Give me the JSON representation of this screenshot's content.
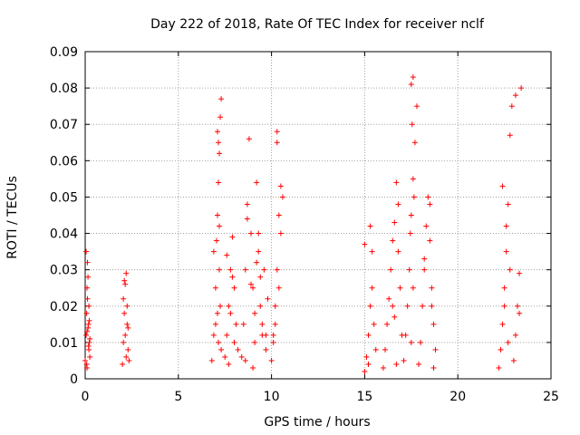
{
  "chart_data": {
    "type": "scatter",
    "title": "Day 222 of 2018, Rate Of TEC Index for receiver nclf",
    "xlabel": "GPS time / hours",
    "ylabel": "ROTI / TECUs",
    "xlim": [
      0,
      25
    ],
    "ylim": [
      0,
      0.09
    ],
    "xticks": [
      0,
      5,
      10,
      15,
      20,
      25
    ],
    "xtick_labels": [
      "0",
      "5",
      "10",
      "15",
      "20",
      "25"
    ],
    "yticks": [
      0,
      0.01,
      0.02,
      0.03,
      0.04,
      0.05,
      0.06,
      0.07,
      0.08,
      0.09
    ],
    "ytick_labels": [
      "0",
      "0.01",
      "0.02",
      "0.03",
      "0.04",
      "0.05",
      "0.06",
      "0.07",
      "0.08",
      "0.09"
    ],
    "grid": true,
    "marker": "+",
    "color": "#ff0000",
    "series": [
      {
        "name": "ROTI",
        "x": [
          0.0,
          0.05,
          0.08,
          0.1,
          0.12,
          0.15,
          0.18,
          0.2,
          0.22,
          0.25,
          0.05,
          0.1,
          0.15,
          0.2,
          0.25,
          0.08,
          0.12,
          0.18,
          0.22,
          0.1,
          2.0,
          2.05,
          2.1,
          2.15,
          2.2,
          2.25,
          2.3,
          2.35,
          2.05,
          2.15,
          2.25,
          2.1,
          2.2,
          2.3,
          6.8,
          6.9,
          7.0,
          7.05,
          7.1,
          7.15,
          7.2,
          7.25,
          7.3,
          7.1,
          7.15,
          7.2,
          7.25,
          7.0,
          7.3,
          6.9,
          7.2,
          7.1,
          7.15,
          7.5,
          7.6,
          7.7,
          7.8,
          7.9,
          8.0,
          8.1,
          8.2,
          7.6,
          7.8,
          8.0,
          7.7,
          7.9,
          8.4,
          8.5,
          8.6,
          8.7,
          8.8,
          8.9,
          9.0,
          9.1,
          9.2,
          9.3,
          9.4,
          9.5,
          9.6,
          9.7,
          9.8,
          8.6,
          8.9,
          9.1,
          9.3,
          9.5,
          9.2,
          9.7,
          8.7,
          9.0,
          9.4,
          10.0,
          10.1,
          10.2,
          10.3,
          10.4,
          10.5,
          10.6,
          10.1,
          10.3,
          10.5,
          10.3,
          10.4,
          10.2,
          15.0,
          15.1,
          15.2,
          15.3,
          15.4,
          15.5,
          15.6,
          15.3,
          15.4,
          15.0,
          15.2,
          16.0,
          16.1,
          16.2,
          16.3,
          16.4,
          16.5,
          16.6,
          16.7,
          16.8,
          16.9,
          17.0,
          16.5,
          16.8,
          16.7,
          16.6,
          17.1,
          17.2,
          17.3,
          17.4,
          17.5,
          17.6,
          17.7,
          17.8,
          17.5,
          17.6,
          17.55,
          17.45,
          17.65,
          17.6,
          17.5,
          17.9,
          18.0,
          18.1,
          18.2,
          18.3,
          18.4,
          18.5,
          18.6,
          18.7,
          18.8,
          18.2,
          18.5,
          18.6,
          18.7,
          22.2,
          22.3,
          22.4,
          22.5,
          22.6,
          22.7,
          22.8,
          22.9,
          22.4,
          22.6,
          22.7,
          22.5,
          22.8,
          23.0,
          23.1,
          23.2,
          23.3,
          23.4,
          23.1,
          23.3
        ],
        "y": [
          0.005,
          0.012,
          0.018,
          0.025,
          0.032,
          0.028,
          0.015,
          0.008,
          0.01,
          0.006,
          0.035,
          0.003,
          0.014,
          0.02,
          0.011,
          0.004,
          0.022,
          0.009,
          0.016,
          0.013,
          0.004,
          0.01,
          0.018,
          0.026,
          0.029,
          0.015,
          0.008,
          0.005,
          0.022,
          0.012,
          0.02,
          0.027,
          0.006,
          0.014,
          0.005,
          0.012,
          0.025,
          0.038,
          0.045,
          0.054,
          0.062,
          0.072,
          0.077,
          0.068,
          0.065,
          0.03,
          0.02,
          0.015,
          0.008,
          0.035,
          0.042,
          0.018,
          0.01,
          0.006,
          0.012,
          0.02,
          0.03,
          0.039,
          0.025,
          0.015,
          0.008,
          0.034,
          0.018,
          0.01,
          0.004,
          0.028,
          0.006,
          0.015,
          0.03,
          0.048,
          0.066,
          0.04,
          0.025,
          0.01,
          0.054,
          0.035,
          0.02,
          0.012,
          0.03,
          0.008,
          0.022,
          0.005,
          0.026,
          0.018,
          0.04,
          0.015,
          0.032,
          0.012,
          0.044,
          0.003,
          0.028,
          0.005,
          0.012,
          0.02,
          0.03,
          0.045,
          0.053,
          0.05,
          0.01,
          0.068,
          0.04,
          0.065,
          0.025,
          0.015,
          0.002,
          0.006,
          0.012,
          0.02,
          0.025,
          0.015,
          0.008,
          0.042,
          0.035,
          0.037,
          0.004,
          0.003,
          0.008,
          0.015,
          0.022,
          0.03,
          0.038,
          0.043,
          0.054,
          0.048,
          0.025,
          0.012,
          0.02,
          0.035,
          0.004,
          0.017,
          0.005,
          0.012,
          0.02,
          0.03,
          0.045,
          0.055,
          0.065,
          0.075,
          0.081,
          0.083,
          0.07,
          0.04,
          0.05,
          0.025,
          0.01,
          0.004,
          0.01,
          0.02,
          0.03,
          0.042,
          0.05,
          0.038,
          0.025,
          0.015,
          0.008,
          0.033,
          0.048,
          0.02,
          0.003,
          0.003,
          0.008,
          0.015,
          0.025,
          0.035,
          0.048,
          0.067,
          0.075,
          0.053,
          0.042,
          0.01,
          0.02,
          0.03,
          0.005,
          0.012,
          0.02,
          0.029,
          0.08,
          0.078,
          0.018
        ]
      }
    ]
  }
}
